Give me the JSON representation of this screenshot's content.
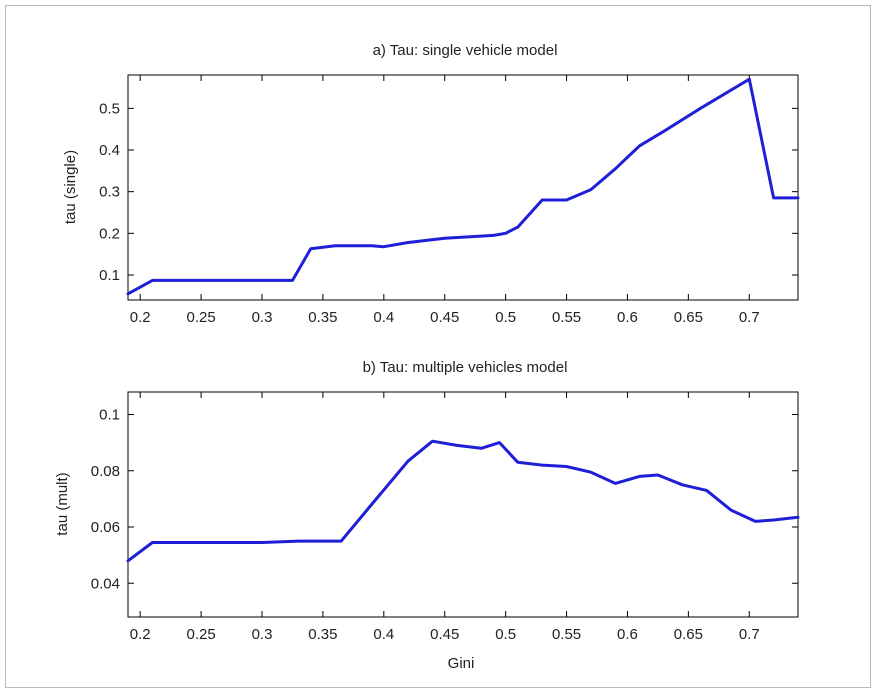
{
  "chart_data": [
    {
      "type": "line",
      "title": "a) Tau: single vehicle model",
      "xlabel": "",
      "ylabel": "tau (single)",
      "xlim": [
        0.19,
        0.74
      ],
      "ylim": [
        0.04,
        0.58
      ],
      "xticks": [
        "0.2",
        "0.25",
        "0.3",
        "0.35",
        "0.4",
        "0.45",
        "0.5",
        "0.55",
        "0.6",
        "0.65",
        "0.7"
      ],
      "yticks": [
        "0.1",
        "0.2",
        "0.3",
        "0.4",
        "0.5"
      ],
      "grid": false,
      "series": [
        {
          "color": "#1f1fd8",
          "x": [
            0.19,
            0.21,
            0.23,
            0.25,
            0.29,
            0.325,
            0.34,
            0.36,
            0.39,
            0.4,
            0.42,
            0.45,
            0.49,
            0.5,
            0.51,
            0.53,
            0.55,
            0.57,
            0.59,
            0.61,
            0.63,
            0.66,
            0.7,
            0.72,
            0.74
          ],
          "y": [
            0.055,
            0.087,
            0.087,
            0.087,
            0.087,
            0.087,
            0.163,
            0.17,
            0.17,
            0.168,
            0.178,
            0.188,
            0.195,
            0.2,
            0.215,
            0.28,
            0.28,
            0.305,
            0.355,
            0.41,
            0.445,
            0.5,
            0.57,
            0.285,
            0.285
          ]
        }
      ]
    },
    {
      "type": "line",
      "title": "b) Tau: multiple vehicles model",
      "xlabel": "Gini",
      "ylabel": "tau (mult)",
      "xlim": [
        0.19,
        0.74
      ],
      "ylim": [
        0.028,
        0.108
      ],
      "xticks": [
        "0.2",
        "0.25",
        "0.3",
        "0.35",
        "0.4",
        "0.45",
        "0.5",
        "0.55",
        "0.6",
        "0.65",
        "0.7"
      ],
      "yticks": [
        "0.04",
        "0.06",
        "0.08",
        "0.1"
      ],
      "grid": false,
      "series": [
        {
          "color": "#1f1fd8",
          "x": [
            0.19,
            0.21,
            0.25,
            0.3,
            0.33,
            0.365,
            0.39,
            0.42,
            0.44,
            0.46,
            0.48,
            0.495,
            0.51,
            0.53,
            0.55,
            0.57,
            0.59,
            0.61,
            0.625,
            0.645,
            0.665,
            0.685,
            0.705,
            0.72,
            0.74
          ],
          "y": [
            0.048,
            0.0545,
            0.0545,
            0.0545,
            0.055,
            0.055,
            0.068,
            0.0835,
            0.0905,
            0.089,
            0.088,
            0.09,
            0.083,
            0.082,
            0.0815,
            0.0795,
            0.0755,
            0.078,
            0.0785,
            0.075,
            0.073,
            0.066,
            0.062,
            0.0625,
            0.0635
          ]
        }
      ]
    }
  ]
}
